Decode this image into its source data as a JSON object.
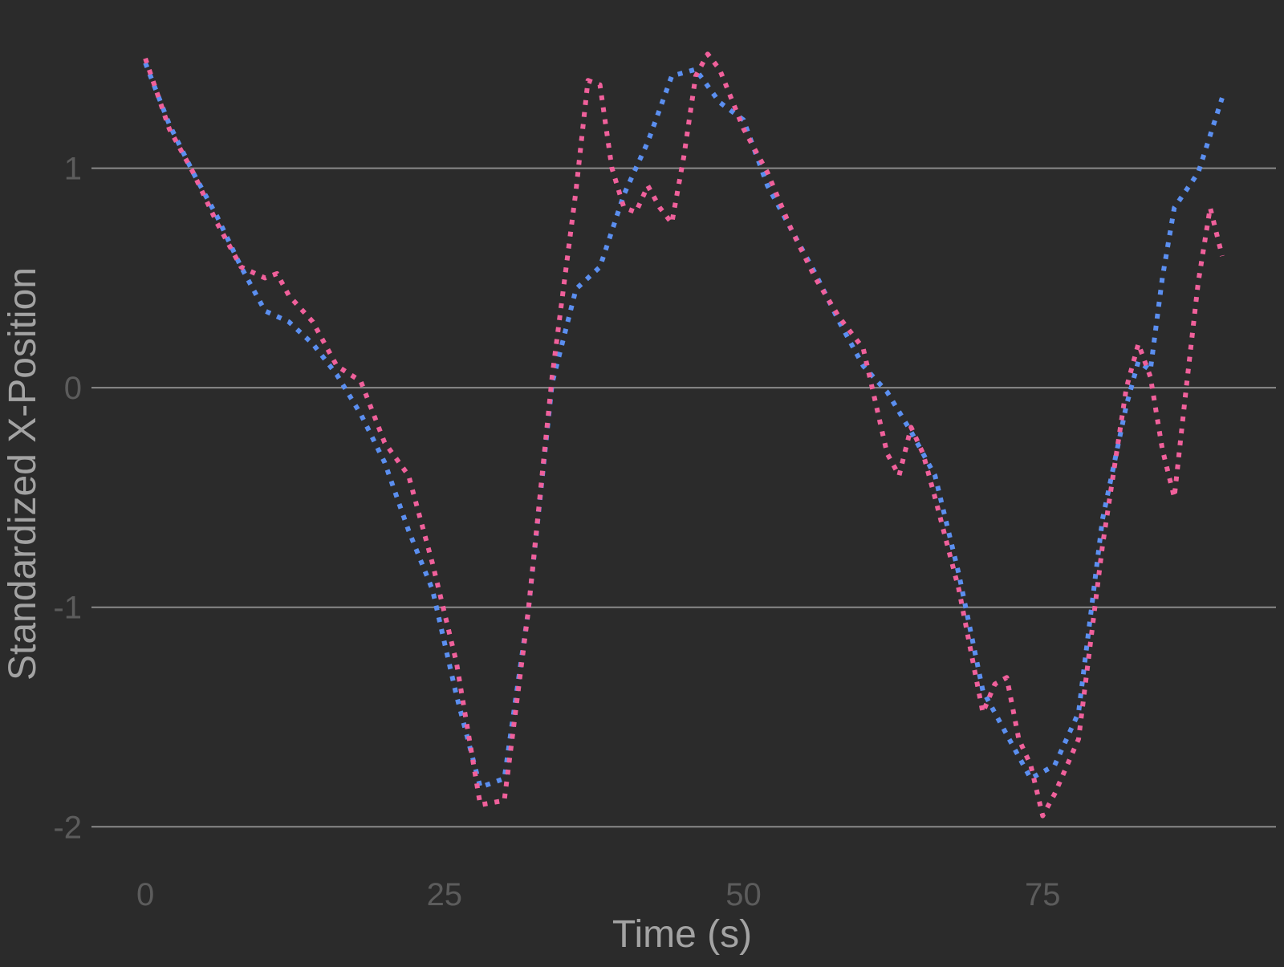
{
  "colors": {
    "background": "#2b2b2b",
    "gridline": "#8a8a8a",
    "tick_text": "#5c5c5c",
    "axis_title_text": "#a3a3a3"
  },
  "chart_data": {
    "type": "line",
    "title": "",
    "xlabel": "Time (s)",
    "ylabel": "Standardized X-Position",
    "xlim": [
      -4.5,
      94.5
    ],
    "ylim": [
      -2.2,
      1.62
    ],
    "x_ticks": [
      0,
      25,
      50,
      75
    ],
    "y_ticks": [
      -2,
      -1,
      0,
      1
    ],
    "x_tick_labels": [
      "0",
      "25",
      "50",
      "75"
    ],
    "y_tick_labels": [
      "-2",
      "-1",
      "0",
      "1"
    ],
    "grid": {
      "horizontal_major": true,
      "vertical": false
    },
    "legend": "none",
    "series": [
      {
        "color": "#5b8ff0",
        "line_style": "dotted",
        "x": [
          0,
          2,
          4,
          6,
          8,
          10,
          12,
          14,
          16,
          18,
          20,
          22,
          24,
          26,
          28,
          30,
          32,
          34,
          36,
          38,
          40,
          42,
          44,
          46,
          48,
          50,
          52,
          54,
          56,
          58,
          60,
          62,
          64,
          66,
          68,
          70,
          72,
          74,
          76,
          78,
          80,
          82,
          83,
          84,
          85,
          86,
          88,
          90
        ],
        "y": [
          1.48,
          1.2,
          0.98,
          0.78,
          0.55,
          0.35,
          0.3,
          0.2,
          0.06,
          -0.12,
          -0.34,
          -0.65,
          -0.92,
          -1.4,
          -1.82,
          -1.78,
          -1.02,
          0.02,
          0.45,
          0.55,
          0.88,
          1.12,
          1.42,
          1.45,
          1.3,
          1.22,
          0.92,
          0.72,
          0.52,
          0.3,
          0.1,
          -0.02,
          -0.2,
          -0.4,
          -0.85,
          -1.38,
          -1.58,
          -1.78,
          -1.72,
          -1.48,
          -0.6,
          -0.08,
          0.12,
          0.08,
          0.5,
          0.82,
          0.98,
          1.32
        ]
      },
      {
        "color": "#f0609b",
        "line_style": "dotted",
        "x": [
          0,
          2,
          4,
          6,
          8,
          10,
          11,
          12,
          14,
          16,
          18,
          20,
          22,
          24,
          26,
          28,
          30,
          32,
          34,
          36,
          37,
          38,
          39,
          40,
          41,
          42,
          43,
          44,
          45,
          46,
          47,
          48,
          50,
          52,
          54,
          56,
          58,
          60,
          62,
          63,
          64,
          65,
          66,
          68,
          70,
          71,
          72,
          73,
          74,
          75,
          76,
          78,
          80,
          82,
          83,
          84,
          85,
          86,
          87,
          88,
          89,
          90
        ],
        "y": [
          1.5,
          1.18,
          0.98,
          0.75,
          0.55,
          0.5,
          0.52,
          0.42,
          0.3,
          0.1,
          0.03,
          -0.25,
          -0.4,
          -0.8,
          -1.25,
          -1.9,
          -1.88,
          -1.02,
          0.05,
          0.9,
          1.4,
          1.38,
          1.0,
          0.82,
          0.8,
          0.92,
          0.82,
          0.75,
          1.05,
          1.42,
          1.52,
          1.45,
          1.18,
          0.98,
          0.72,
          0.5,
          0.32,
          0.18,
          -0.3,
          -0.4,
          -0.18,
          -0.3,
          -0.5,
          -0.92,
          -1.48,
          -1.35,
          -1.32,
          -1.6,
          -1.72,
          -1.95,
          -1.85,
          -1.6,
          -0.72,
          0.0,
          0.2,
          0.05,
          -0.28,
          -0.5,
          0.0,
          0.48,
          0.82,
          0.6
        ]
      }
    ]
  }
}
